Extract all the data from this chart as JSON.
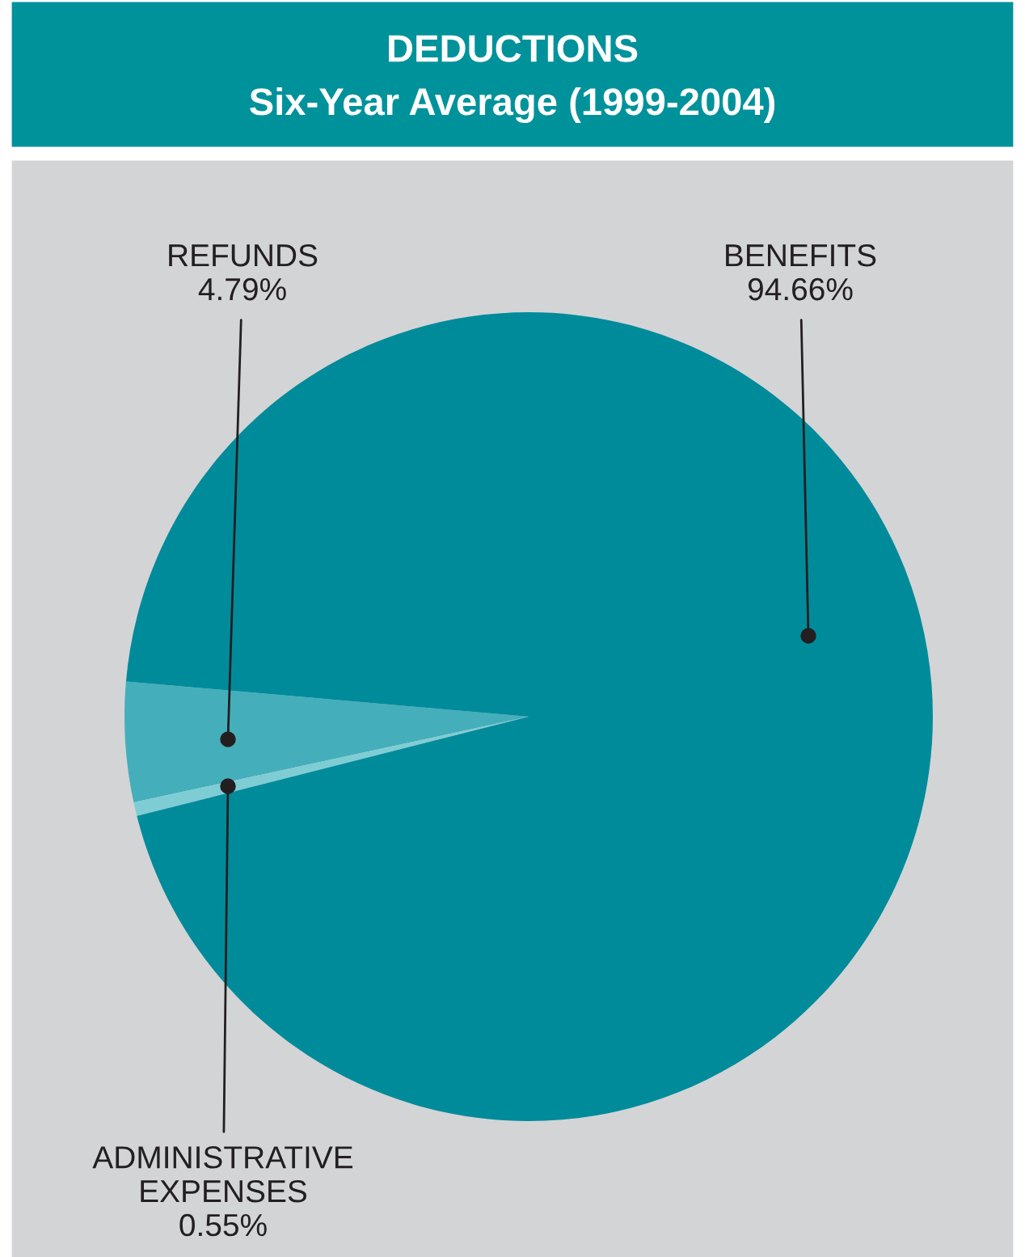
{
  "chart_data": {
    "type": "pie",
    "title": "DEDUCTIONS",
    "subtitle": "Six-Year Average (1999-2004)",
    "categories": [
      "REFUNDS",
      "ADMINISTRATIVE\nEXPENSES",
      "BENEFITS"
    ],
    "values": [
      4.79,
      0.55,
      94.66
    ],
    "value_labels": [
      "4.79%",
      "0.55%",
      "94.66%"
    ],
    "colors": [
      "#45aebb",
      "#7fcdd4",
      "#008b9a"
    ]
  }
}
